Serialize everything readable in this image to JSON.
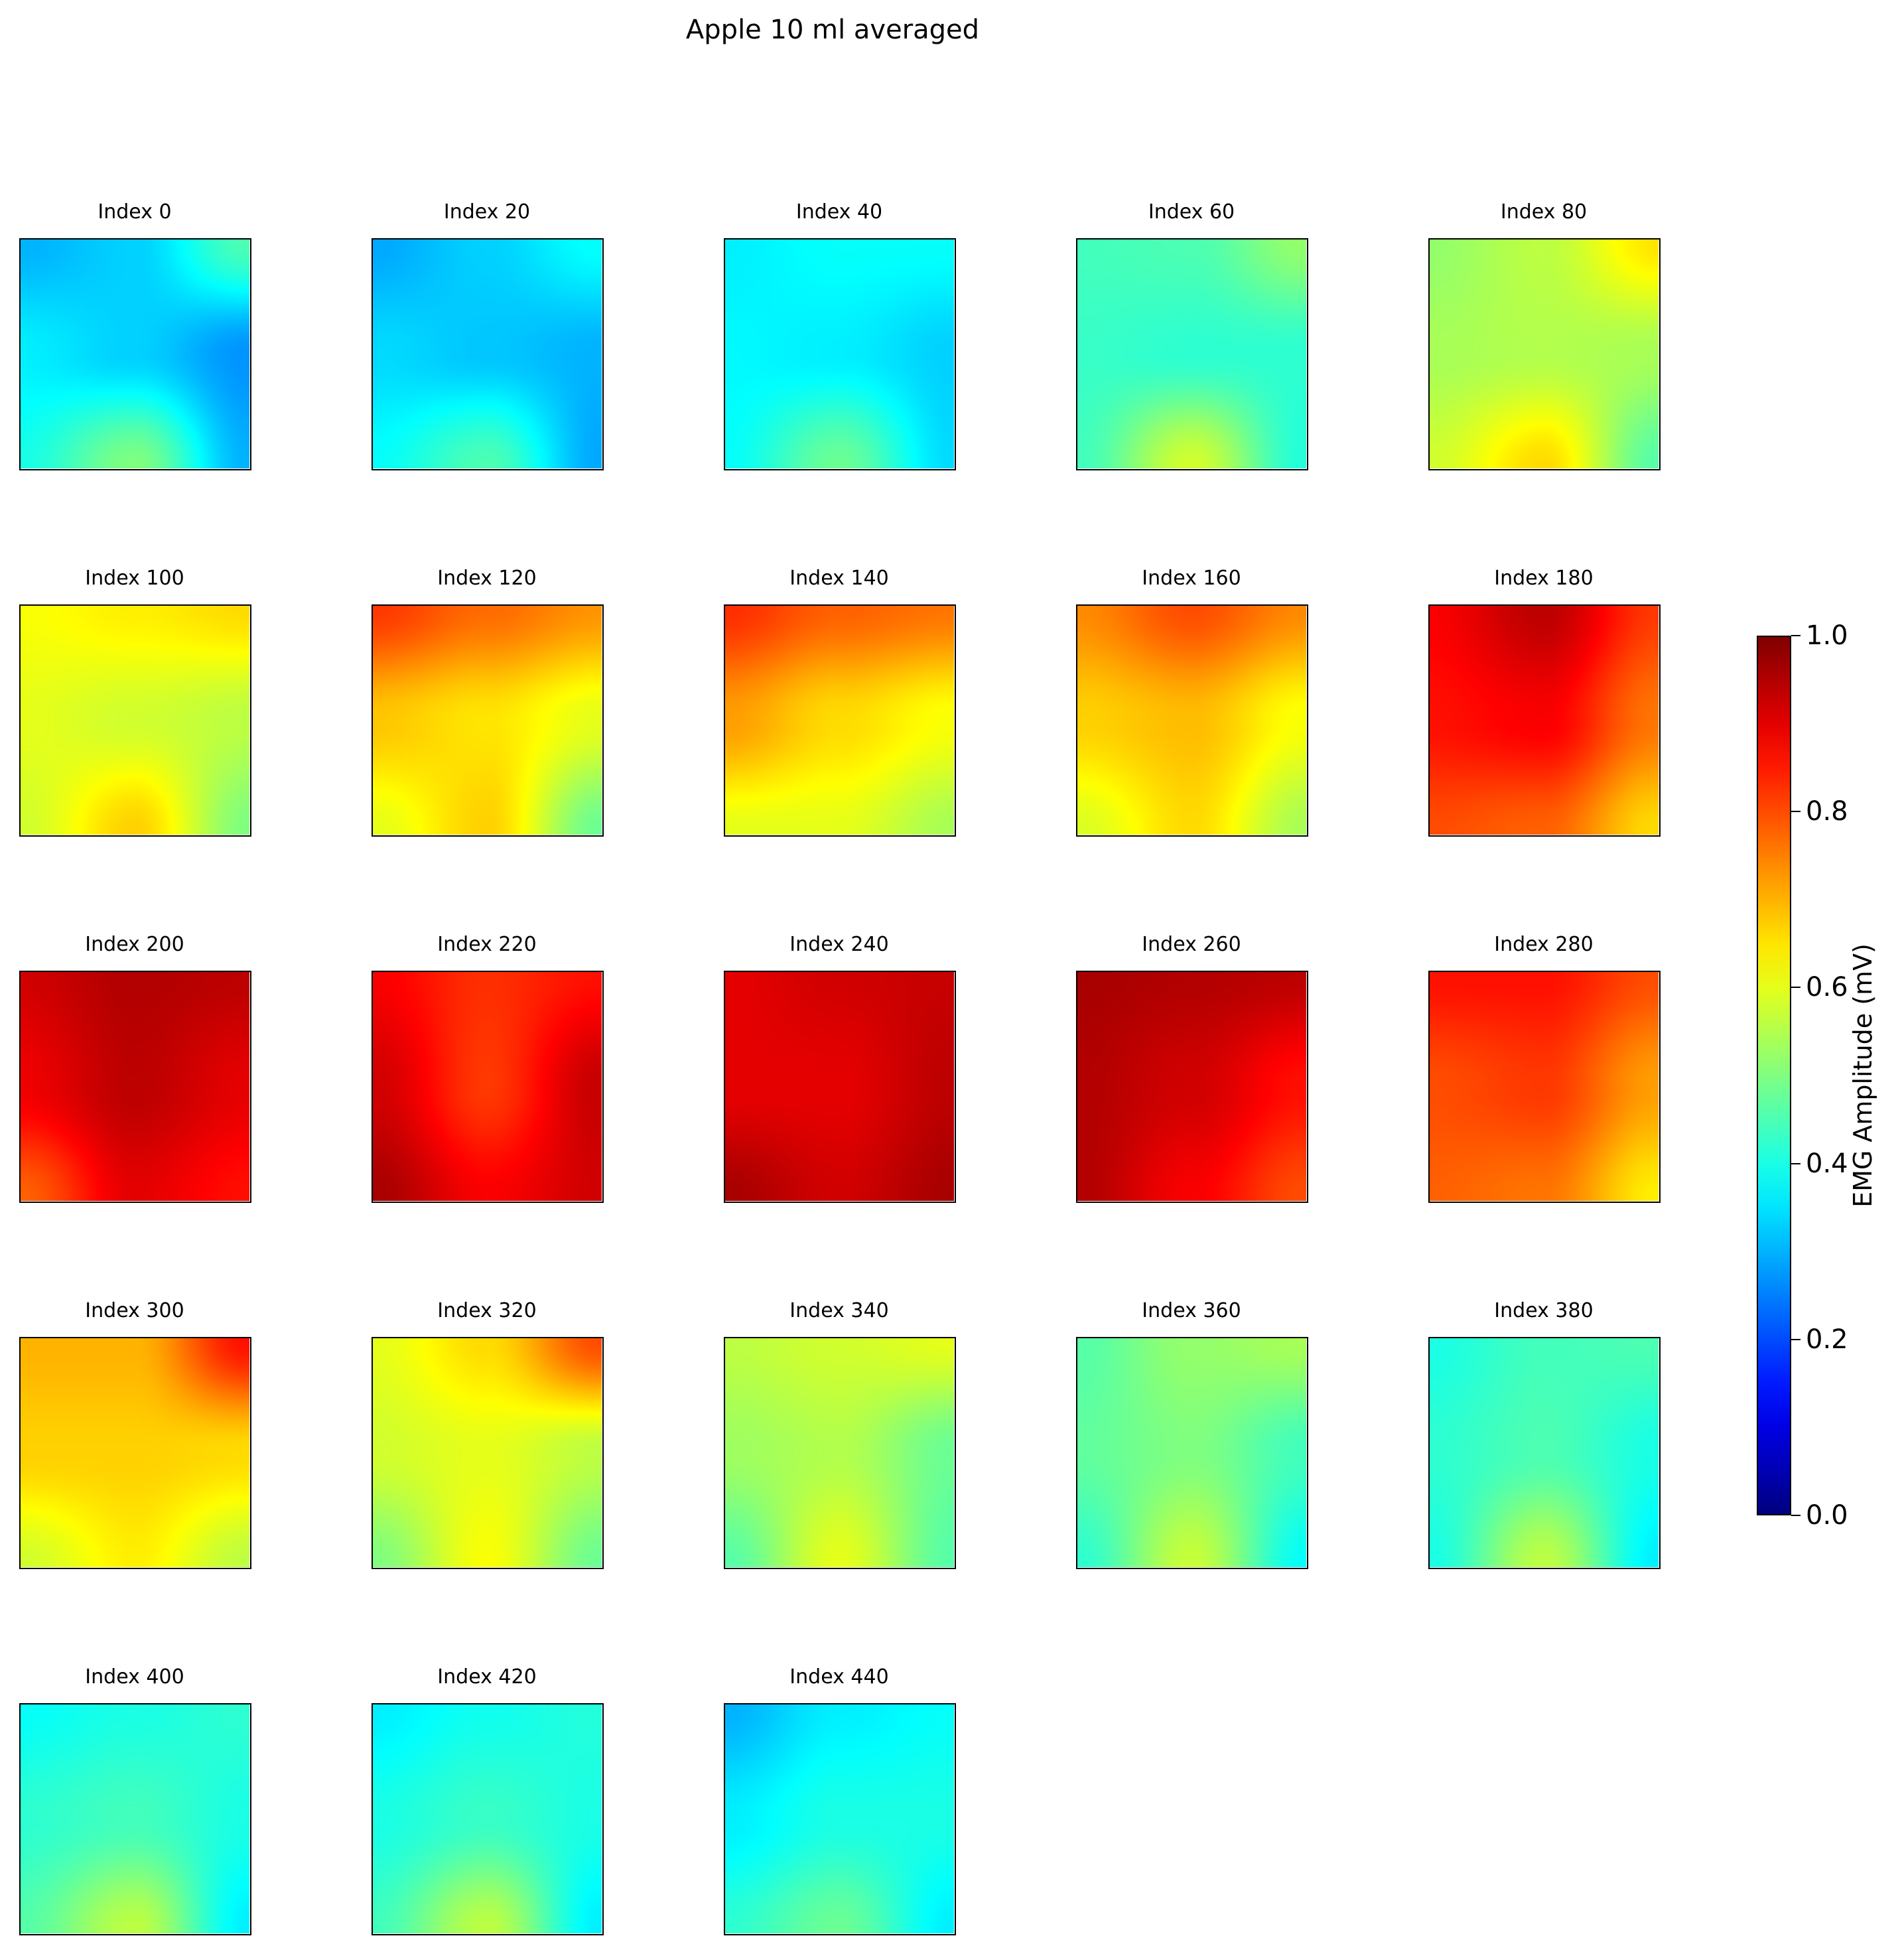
{
  "chart_data": {
    "type": "heatmap",
    "title": "Apple 10 ml averaged",
    "colormap": "jet",
    "vmin": 0.0,
    "vmax": 1.0,
    "colorbar": {
      "label": "EMG Amplitude (mV)",
      "ticks": [
        0.0,
        0.2,
        0.4,
        0.6,
        0.8,
        1.0
      ],
      "tick_labels": [
        "0.0",
        "0.2",
        "0.4",
        "0.6",
        "0.8",
        "1.0"
      ]
    },
    "grid_shape": [
      5,
      5
    ],
    "panels": [
      {
        "title": "Index 0",
        "values": [
          [
            0.3,
            0.33,
            0.45
          ],
          [
            0.36,
            0.33,
            0.27
          ],
          [
            0.4,
            0.5,
            0.3
          ]
        ]
      },
      {
        "title": "Index 20",
        "values": [
          [
            0.29,
            0.33,
            0.38
          ],
          [
            0.34,
            0.32,
            0.3
          ],
          [
            0.38,
            0.45,
            0.29
          ]
        ]
      },
      {
        "title": "Index 40",
        "values": [
          [
            0.36,
            0.38,
            0.38
          ],
          [
            0.37,
            0.36,
            0.33
          ],
          [
            0.38,
            0.48,
            0.34
          ]
        ]
      },
      {
        "title": "Index 60",
        "values": [
          [
            0.44,
            0.45,
            0.52
          ],
          [
            0.43,
            0.42,
            0.42
          ],
          [
            0.44,
            0.58,
            0.41
          ]
        ]
      },
      {
        "title": "Index 80",
        "values": [
          [
            0.52,
            0.56,
            0.65
          ],
          [
            0.54,
            0.55,
            0.54
          ],
          [
            0.58,
            0.66,
            0.46
          ]
        ]
      },
      {
        "title": "Index 100",
        "values": [
          [
            0.62,
            0.64,
            0.66
          ],
          [
            0.6,
            0.58,
            0.56
          ],
          [
            0.58,
            0.67,
            0.5
          ]
        ]
      },
      {
        "title": "Index 120",
        "values": [
          [
            0.82,
            0.77,
            0.73
          ],
          [
            0.68,
            0.65,
            0.6
          ],
          [
            0.6,
            0.67,
            0.48
          ]
        ]
      },
      {
        "title": "Index 140",
        "values": [
          [
            0.83,
            0.78,
            0.76
          ],
          [
            0.72,
            0.66,
            0.62
          ],
          [
            0.6,
            0.6,
            0.54
          ]
        ]
      },
      {
        "title": "Index 160",
        "values": [
          [
            0.74,
            0.8,
            0.74
          ],
          [
            0.67,
            0.69,
            0.62
          ],
          [
            0.59,
            0.66,
            0.54
          ]
        ]
      },
      {
        "title": "Index 180",
        "values": [
          [
            0.88,
            0.94,
            0.82
          ],
          [
            0.86,
            0.88,
            0.76
          ],
          [
            0.8,
            0.78,
            0.66
          ]
        ]
      },
      {
        "title": "Index 200",
        "values": [
          [
            0.92,
            0.95,
            0.94
          ],
          [
            0.89,
            0.94,
            0.9
          ],
          [
            0.78,
            0.9,
            0.86
          ]
        ]
      },
      {
        "title": "Index 220",
        "values": [
          [
            0.88,
            0.83,
            0.86
          ],
          [
            0.92,
            0.82,
            0.93
          ],
          [
            0.96,
            0.88,
            0.92
          ]
        ]
      },
      {
        "title": "Index 240",
        "values": [
          [
            0.9,
            0.92,
            0.93
          ],
          [
            0.9,
            0.9,
            0.94
          ],
          [
            0.96,
            0.92,
            0.96
          ]
        ]
      },
      {
        "title": "Index 260",
        "values": [
          [
            0.96,
            0.95,
            0.94
          ],
          [
            0.95,
            0.92,
            0.86
          ],
          [
            0.95,
            0.88,
            0.8
          ]
        ]
      },
      {
        "title": "Index 280",
        "values": [
          [
            0.86,
            0.86,
            0.8
          ],
          [
            0.8,
            0.82,
            0.72
          ],
          [
            0.78,
            0.76,
            0.64
          ]
        ]
      },
      {
        "title": "Index 300",
        "values": [
          [
            0.7,
            0.7,
            0.86
          ],
          [
            0.67,
            0.67,
            0.66
          ],
          [
            0.58,
            0.64,
            0.56
          ]
        ]
      },
      {
        "title": "Index 320",
        "values": [
          [
            0.6,
            0.66,
            0.8
          ],
          [
            0.58,
            0.6,
            0.56
          ],
          [
            0.5,
            0.62,
            0.48
          ]
        ]
      },
      {
        "title": "Index 340",
        "values": [
          [
            0.56,
            0.58,
            0.6
          ],
          [
            0.53,
            0.55,
            0.48
          ],
          [
            0.46,
            0.6,
            0.46
          ]
        ]
      },
      {
        "title": "Index 360",
        "values": [
          [
            0.46,
            0.52,
            0.54
          ],
          [
            0.47,
            0.5,
            0.44
          ],
          [
            0.42,
            0.57,
            0.38
          ]
        ]
      },
      {
        "title": "Index 380",
        "values": [
          [
            0.4,
            0.44,
            0.45
          ],
          [
            0.42,
            0.45,
            0.4
          ],
          [
            0.4,
            0.56,
            0.36
          ]
        ]
      },
      {
        "title": "Index 400",
        "values": [
          [
            0.38,
            0.4,
            0.42
          ],
          [
            0.42,
            0.44,
            0.4
          ],
          [
            0.46,
            0.56,
            0.36
          ]
        ]
      },
      {
        "title": "Index 420",
        "values": [
          [
            0.36,
            0.39,
            0.41
          ],
          [
            0.4,
            0.43,
            0.4
          ],
          [
            0.44,
            0.56,
            0.36
          ]
        ]
      },
      {
        "title": "Index 440",
        "values": [
          [
            0.3,
            0.36,
            0.38
          ],
          [
            0.36,
            0.4,
            0.4
          ],
          [
            0.42,
            0.48,
            0.36
          ]
        ]
      }
    ]
  }
}
